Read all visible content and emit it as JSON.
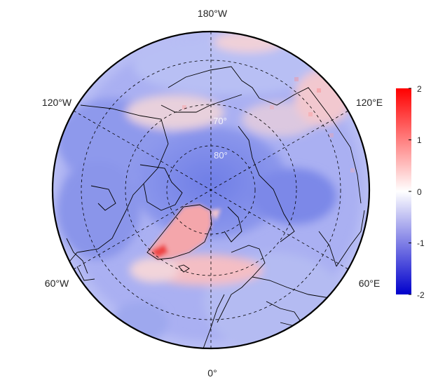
{
  "map": {
    "projection": "north-polar-stereographic",
    "colormap": {
      "low": "#0000cc",
      "mid": "#ffffff",
      "high": "#ff0000"
    },
    "land_outline_color": "#000000",
    "longitude_labels": {
      "top": "180°W",
      "bottom": "0°",
      "upper_left": "120°W",
      "upper_right": "120°E",
      "lower_left": "60°W",
      "lower_right": "60°E"
    },
    "latitude_labels": {
      "inner": "80°",
      "outer": "70°"
    }
  },
  "colorbar": {
    "min": -2,
    "max": 2,
    "ticks": [
      "2",
      "1",
      "0",
      "-1",
      "-2"
    ]
  }
}
